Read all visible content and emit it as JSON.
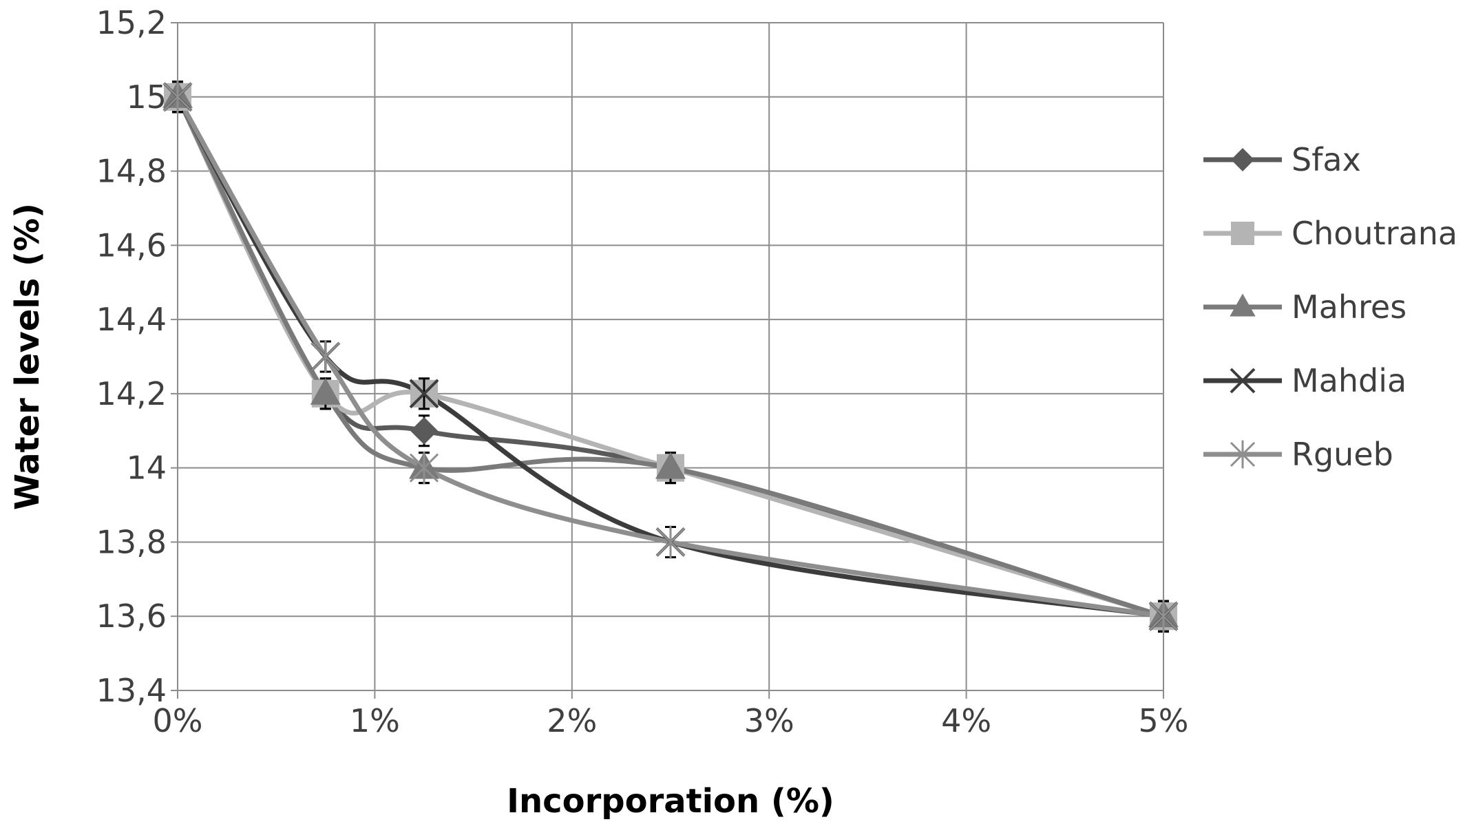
{
  "chart_data": {
    "type": "line",
    "xlabel": "Incorporation (%)",
    "ylabel": "Water levels (%)",
    "x_tick_labels": [
      "0%",
      "1%",
      "2%",
      "3%",
      "4%",
      "5%"
    ],
    "y_tick_labels": [
      "13,4",
      "13,6",
      "13,8",
      "14",
      "14,2",
      "14,4",
      "14,6",
      "14,8",
      "15",
      "15,2"
    ],
    "xlim": [
      0,
      5
    ],
    "ylim": [
      13.4,
      15.2
    ],
    "grid": true,
    "legend_position": "right",
    "x": [
      0,
      0.75,
      1.25,
      2.5,
      5
    ],
    "series": [
      {
        "name": "Sfax",
        "values": [
          15.0,
          14.2,
          14.1,
          14.0,
          13.6
        ],
        "color": "#5a5a5a",
        "marker": "diamond"
      },
      {
        "name": "Choutrana",
        "values": [
          15.0,
          14.2,
          14.2,
          14.0,
          13.6
        ],
        "color": "#b4b4b4",
        "marker": "square"
      },
      {
        "name": "Mahres",
        "values": [
          15.0,
          14.2,
          14.0,
          14.0,
          13.6
        ],
        "color": "#7a7a7a",
        "marker": "triangle"
      },
      {
        "name": "Mahdia",
        "values": [
          15.0,
          14.3,
          14.2,
          13.8,
          13.6
        ],
        "color": "#3c3c3c",
        "marker": "x"
      },
      {
        "name": "Rgueb",
        "values": [
          15.0,
          14.3,
          14.0,
          13.8,
          13.6
        ],
        "color": "#8e8e8e",
        "marker": "star"
      }
    ]
  }
}
